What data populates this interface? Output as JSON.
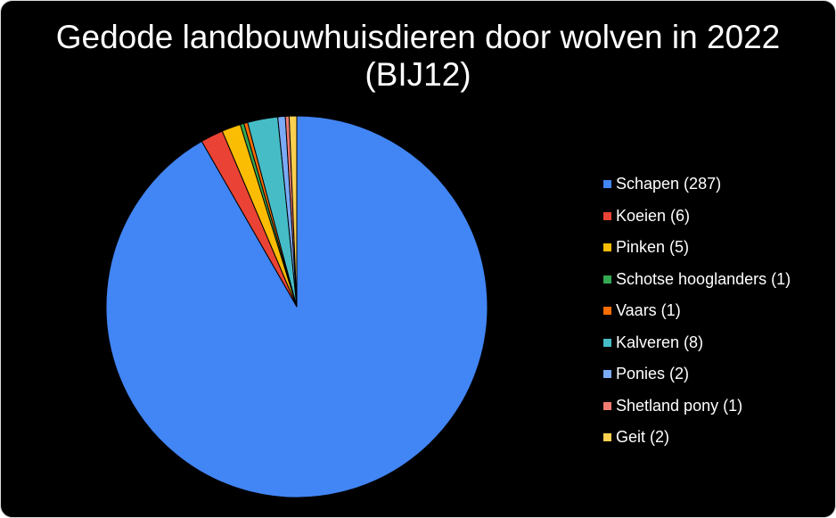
{
  "chart_data": {
    "type": "pie",
    "title": "Gedode landbouwhuisdieren door wolven in 2022 (BIJ12)",
    "legend_position": "right",
    "start_angle": "12 o'clock, clockwise",
    "slices": [
      {
        "label": "Schapen (287)",
        "value": 287,
        "color": "#4285f4"
      },
      {
        "label": "Koeien (6)",
        "value": 6,
        "color": "#ea4335"
      },
      {
        "label": "Pinken (5)",
        "value": 5,
        "color": "#fbbc04"
      },
      {
        "label": "Schotse hooglanders (1)",
        "value": 1,
        "color": "#34a853"
      },
      {
        "label": "Vaars (1)",
        "value": 1,
        "color": "#ff6d01"
      },
      {
        "label": "Kalveren (8)",
        "value": 8,
        "color": "#46bdc6"
      },
      {
        "label": "Ponies (2)",
        "value": 2,
        "color": "#7baaf7"
      },
      {
        "label": "Shetland pony (1)",
        "value": 1,
        "color": "#f07b72"
      },
      {
        "label": "Geit (2)",
        "value": 2,
        "color": "#fcd04f"
      }
    ],
    "background": "#000000",
    "text_color": "#ffffff"
  }
}
